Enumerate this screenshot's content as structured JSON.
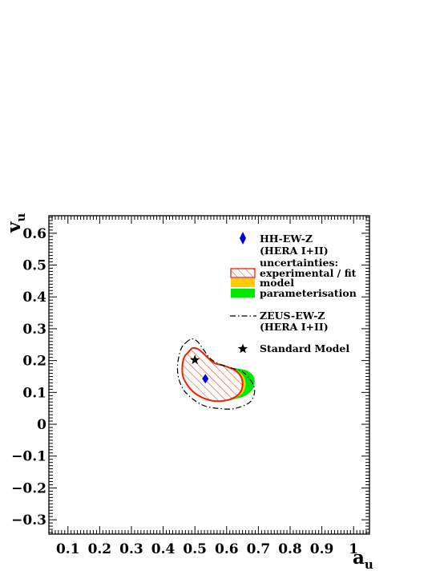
{
  "chart_data": {
    "type": "scatter",
    "xlabel": "a",
    "xlabel_sub": "u",
    "ylabel": "v",
    "ylabel_sub": "u",
    "xlim": [
      0.04,
      1.05
    ],
    "ylim": [
      -0.345,
      0.655
    ],
    "x_ticks": [
      0.1,
      0.2,
      0.3,
      0.4,
      0.5,
      0.6,
      0.7,
      0.8,
      0.9,
      1.0
    ],
    "x_tick_labels": [
      "0.1",
      "0.2",
      "0.3",
      "0.4",
      "0.5",
      "0.6",
      "0.7",
      "0.8",
      "0.9",
      "1"
    ],
    "y_ticks": [
      -0.3,
      -0.2,
      -0.1,
      0.0,
      0.1,
      0.2,
      0.3,
      0.4,
      0.5,
      0.6
    ],
    "y_tick_labels": [
      "−0.3",
      "−0.2",
      "−0.1",
      "0",
      "0.1",
      "0.2",
      "0.3",
      "0.4",
      "0.5",
      "0.6"
    ],
    "grid": false,
    "legend_position": "top-right",
    "points": [
      {
        "name": "HH-EW-Z (HERA I+II)",
        "marker": "diamond",
        "color": "#0000dd",
        "x": 0.533,
        "y": 0.143
      },
      {
        "name": "Standard Model",
        "marker": "star",
        "color": "#000000",
        "x": 0.5,
        "y": 0.202
      }
    ],
    "contours": {
      "parameterisation": {
        "color": "#00e600",
        "points": [
          [
            0.478,
            0.223
          ],
          [
            0.49,
            0.238
          ],
          [
            0.51,
            0.232
          ],
          [
            0.535,
            0.21
          ],
          [
            0.56,
            0.19
          ],
          [
            0.6,
            0.178
          ],
          [
            0.64,
            0.174
          ],
          [
            0.665,
            0.168
          ],
          [
            0.684,
            0.152
          ],
          [
            0.688,
            0.13
          ],
          [
            0.68,
            0.108
          ],
          [
            0.66,
            0.09
          ],
          [
            0.63,
            0.08
          ],
          [
            0.6,
            0.074
          ],
          [
            0.57,
            0.073
          ],
          [
            0.54,
            0.078
          ],
          [
            0.505,
            0.095
          ],
          [
            0.478,
            0.12
          ],
          [
            0.462,
            0.15
          ],
          [
            0.46,
            0.185
          ],
          [
            0.466,
            0.21
          ]
        ]
      },
      "model": {
        "color": "#ffcc00",
        "points": [
          [
            0.478,
            0.224
          ],
          [
            0.492,
            0.238
          ],
          [
            0.51,
            0.234
          ],
          [
            0.535,
            0.212
          ],
          [
            0.56,
            0.192
          ],
          [
            0.6,
            0.182
          ],
          [
            0.63,
            0.17
          ],
          [
            0.652,
            0.152
          ],
          [
            0.66,
            0.128
          ],
          [
            0.652,
            0.1
          ],
          [
            0.63,
            0.084
          ],
          [
            0.6,
            0.074
          ],
          [
            0.57,
            0.073
          ],
          [
            0.54,
            0.078
          ],
          [
            0.505,
            0.095
          ],
          [
            0.478,
            0.12
          ],
          [
            0.462,
            0.15
          ],
          [
            0.46,
            0.185
          ],
          [
            0.466,
            0.21
          ]
        ]
      },
      "experimental": {
        "color": "#ee2200",
        "points": [
          [
            0.478,
            0.225
          ],
          [
            0.492,
            0.239
          ],
          [
            0.51,
            0.236
          ],
          [
            0.535,
            0.215
          ],
          [
            0.56,
            0.193
          ],
          [
            0.595,
            0.183
          ],
          [
            0.625,
            0.17
          ],
          [
            0.645,
            0.15
          ],
          [
            0.65,
            0.122
          ],
          [
            0.64,
            0.096
          ],
          [
            0.615,
            0.08
          ],
          [
            0.585,
            0.073
          ],
          [
            0.555,
            0.074
          ],
          [
            0.525,
            0.083
          ],
          [
            0.497,
            0.1
          ],
          [
            0.475,
            0.125
          ],
          [
            0.462,
            0.152
          ],
          [
            0.461,
            0.188
          ],
          [
            0.467,
            0.212
          ]
        ]
      },
      "zeus": {
        "color": "#000000",
        "points": [
          [
            0.47,
            0.255
          ],
          [
            0.49,
            0.268
          ],
          [
            0.508,
            0.26
          ],
          [
            0.528,
            0.233
          ],
          [
            0.548,
            0.207
          ],
          [
            0.575,
            0.19
          ],
          [
            0.61,
            0.178
          ],
          [
            0.645,
            0.168
          ],
          [
            0.668,
            0.148
          ],
          [
            0.683,
            0.125
          ],
          [
            0.688,
            0.1
          ],
          [
            0.676,
            0.072
          ],
          [
            0.65,
            0.057
          ],
          [
            0.615,
            0.048
          ],
          [
            0.57,
            0.05
          ],
          [
            0.53,
            0.058
          ],
          [
            0.495,
            0.078
          ],
          [
            0.466,
            0.106
          ],
          [
            0.45,
            0.14
          ],
          [
            0.445,
            0.178
          ],
          [
            0.45,
            0.215
          ],
          [
            0.458,
            0.24
          ]
        ]
      }
    },
    "legend": {
      "hh_line1": "HH-EW-Z",
      "hh_line2": "(HERA I+II)",
      "uncertainties": "uncertainties:",
      "experimental": "experimental / fit",
      "model": "model",
      "parameterisation": "parameterisation",
      "zeus_line1": "ZEUS-EW-Z",
      "zeus_line2": "(HERA I+II)",
      "sm": "Standard Model"
    }
  }
}
